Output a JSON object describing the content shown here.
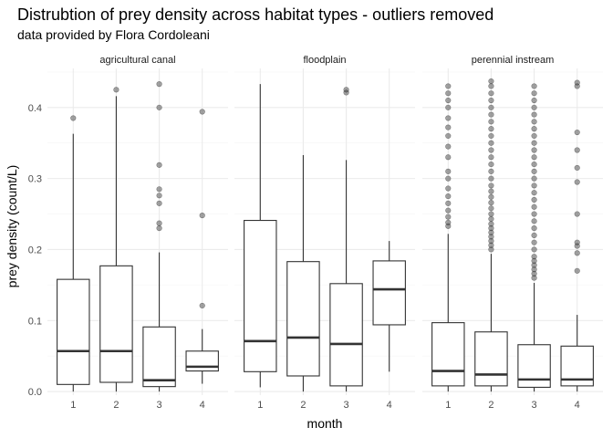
{
  "chart_data": {
    "type": "boxplot",
    "title": "Distrubtion of prey density across habitat types - outliers removed",
    "subtitle": "data provided by Flora Cordoleani",
    "xlabel": "month",
    "ylabel": "prey density (count/L)",
    "ylim": [
      -0.005,
      0.455
    ],
    "y_ticks": [
      0.0,
      0.1,
      0.2,
      0.3,
      0.4
    ],
    "y_tick_labels": [
      "0.0",
      "0.1",
      "0.2",
      "0.3",
      "0.4"
    ],
    "categories": [
      "1",
      "2",
      "3",
      "4"
    ],
    "grid": true,
    "panels": [
      {
        "name": "agricultural canal",
        "boxes": [
          {
            "month": "1",
            "lower": 0.0,
            "q1": 0.01,
            "median": 0.057,
            "q3": 0.158,
            "upper": 0.363,
            "outliers": [
              0.385
            ]
          },
          {
            "month": "2",
            "lower": 0.0,
            "q1": 0.013,
            "median": 0.057,
            "q3": 0.177,
            "upper": 0.416,
            "outliers": [
              0.425
            ]
          },
          {
            "month": "3",
            "lower": 0.0,
            "q1": 0.007,
            "median": 0.016,
            "q3": 0.091,
            "upper": 0.196,
            "outliers": [
              0.23,
              0.237,
              0.265,
              0.276,
              0.285,
              0.319,
              0.4,
              0.433
            ]
          },
          {
            "month": "4",
            "lower": 0.011,
            "q1": 0.029,
            "median": 0.035,
            "q3": 0.057,
            "upper": 0.088,
            "outliers": [
              0.121,
              0.248,
              0.394
            ]
          }
        ]
      },
      {
        "name": "floodplain",
        "boxes": [
          {
            "month": "1",
            "lower": 0.006,
            "q1": 0.028,
            "median": 0.071,
            "q3": 0.241,
            "upper": 0.433,
            "outliers": []
          },
          {
            "month": "2",
            "lower": 0.0,
            "q1": 0.022,
            "median": 0.076,
            "q3": 0.183,
            "upper": 0.333,
            "outliers": []
          },
          {
            "month": "3",
            "lower": 0.0,
            "q1": 0.008,
            "median": 0.067,
            "q3": 0.152,
            "upper": 0.326,
            "outliers": [
              0.421,
              0.425
            ]
          },
          {
            "month": "4",
            "lower": 0.028,
            "q1": 0.094,
            "median": 0.144,
            "q3": 0.184,
            "upper": 0.212,
            "outliers": []
          }
        ]
      },
      {
        "name": "perennial instream",
        "boxes": [
          {
            "month": "1",
            "lower": 0.0,
            "q1": 0.008,
            "median": 0.029,
            "q3": 0.097,
            "upper": 0.222,
            "outliers": [
              0.233,
              0.238,
              0.246,
              0.255,
              0.265,
              0.275,
              0.286,
              0.3,
              0.31,
              0.33,
              0.345,
              0.36,
              0.372,
              0.385,
              0.4,
              0.41,
              0.42,
              0.43
            ]
          },
          {
            "month": "2",
            "lower": 0.0,
            "q1": 0.008,
            "median": 0.024,
            "q3": 0.084,
            "upper": 0.194,
            "outliers": [
              0.2,
              0.206,
              0.212,
              0.218,
              0.224,
              0.23,
              0.236,
              0.243,
              0.25,
              0.258,
              0.266,
              0.274,
              0.282,
              0.29,
              0.3,
              0.31,
              0.32,
              0.33,
              0.34,
              0.35,
              0.36,
              0.37,
              0.38,
              0.39,
              0.4,
              0.41,
              0.42,
              0.43,
              0.437
            ]
          },
          {
            "month": "3",
            "lower": 0.0,
            "q1": 0.006,
            "median": 0.017,
            "q3": 0.066,
            "upper": 0.153,
            "outliers": [
              0.16,
              0.166,
              0.172,
              0.178,
              0.184,
              0.19,
              0.2,
              0.21,
              0.22,
              0.23,
              0.24,
              0.25,
              0.26,
              0.27,
              0.28,
              0.29,
              0.3,
              0.31,
              0.32,
              0.33,
              0.34,
              0.35,
              0.36,
              0.37,
              0.38,
              0.39,
              0.4,
              0.41,
              0.42,
              0.43
            ]
          },
          {
            "month": "4",
            "lower": 0.0,
            "q1": 0.008,
            "median": 0.017,
            "q3": 0.064,
            "upper": 0.108,
            "outliers": [
              0.17,
              0.195,
              0.205,
              0.21,
              0.25,
              0.295,
              0.315,
              0.34,
              0.365,
              0.43,
              0.435
            ]
          }
        ]
      }
    ]
  }
}
